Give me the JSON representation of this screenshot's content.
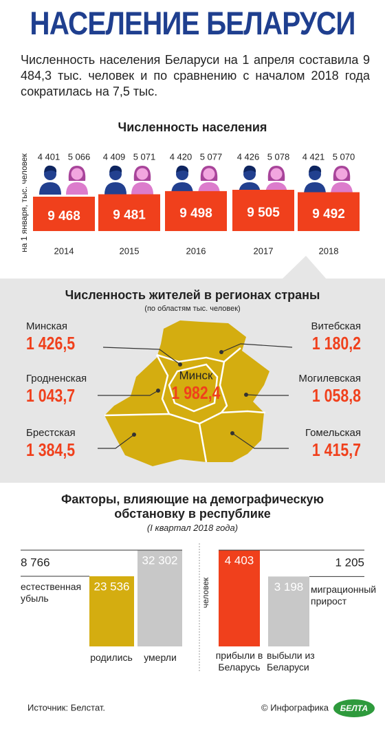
{
  "header": {
    "title": "НАСЕЛЕНИЕ БЕЛАРУСИ",
    "lead": "Численность населения Беларуси на 1 апреля составила 9 484,3 тыс. человек и по сравнению с началом 2018 года сократилась на 7,5 тыс."
  },
  "population": {
    "title": "Численность населения",
    "axis_label": "на 1 января, тыс. человек",
    "years": [
      "2014",
      "2015",
      "2016",
      "2017",
      "2018"
    ],
    "men": [
      "4 401",
      "4 409",
      "4 420",
      "4 426",
      "4 421"
    ],
    "women": [
      "5 066",
      "5 071",
      "5 077",
      "5 078",
      "5 070"
    ],
    "totals": [
      {
        "value": 9468,
        "label": "9 468"
      },
      {
        "value": 9481,
        "label": "9 481"
      },
      {
        "value": 9498,
        "label": "9 498"
      },
      {
        "value": 9505,
        "label": "9 505"
      },
      {
        "value": 9492,
        "label": "9 492"
      }
    ]
  },
  "regions": {
    "title": "Численность жителей в регионах страны",
    "subtitle": "(по областям тыс. человек)",
    "items": [
      {
        "name": "Минская",
        "value": "1 426,5"
      },
      {
        "name": "Гродненская",
        "value": "1 043,7"
      },
      {
        "name": "Брестская",
        "value": "1 384,5"
      },
      {
        "name": "Витебская",
        "value": "1 180,2"
      },
      {
        "name": "Могилевская",
        "value": "1 058,8"
      },
      {
        "name": "Гомельская",
        "value": "1 415,7"
      },
      {
        "name": "Минск",
        "value": "1 982,4"
      }
    ]
  },
  "factors": {
    "title": "Факторы, влияющие на демографическую обстановку в республике",
    "subtitle": "(I квартал 2018 года)",
    "natural": {
      "difference": {
        "value": 8766,
        "label": "8 766"
      },
      "difference_label": "естественная убыль",
      "births": {
        "value": 23536,
        "label": "23 536"
      },
      "births_label": "родились",
      "deaths": {
        "value": 32302,
        "label": "32 302"
      },
      "deaths_label": "умерли"
    },
    "migration": {
      "unit": "человек",
      "difference": {
        "value": 1205,
        "label": "1 205"
      },
      "difference_label": "миграционный прирост",
      "arrivals": {
        "value": 4403,
        "label": "4 403"
      },
      "arrivals_label": "прибыли в Беларусь",
      "departures": {
        "value": 3198,
        "label": "3 198"
      },
      "departures_label": "выбыли из Беларуси"
    }
  },
  "footer": {
    "source": "Источник: Белстат.",
    "credit": "© Инфографика",
    "logo": "БЕЛТА"
  }
}
